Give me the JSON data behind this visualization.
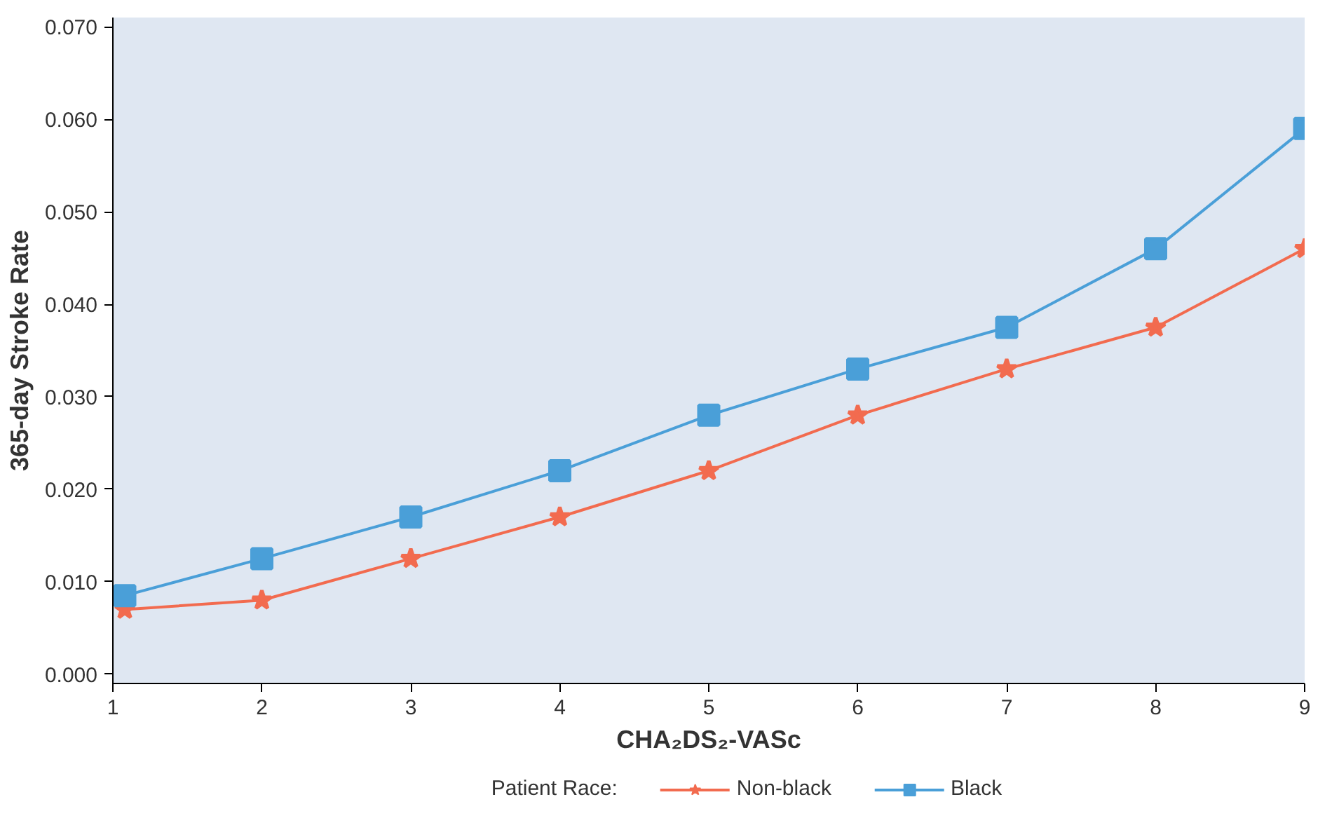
{
  "chart_data": {
    "type": "line",
    "xlabel": "CHA₂DS₂-VASc",
    "ylabel": "365-day Stroke Rate",
    "legend_title": "Patient Race:",
    "x": [
      1.08,
      2,
      3,
      4,
      5,
      6,
      7,
      8,
      9
    ],
    "series": [
      {
        "name": "Non-black",
        "color": "#f26b4f",
        "marker": "star",
        "values": [
          0.007,
          0.008,
          0.0125,
          0.017,
          0.022,
          0.028,
          0.033,
          0.0375,
          0.046
        ]
      },
      {
        "name": "Black",
        "color": "#4a9fd8",
        "marker": "square",
        "values": [
          0.0085,
          0.0125,
          0.017,
          0.022,
          0.028,
          0.033,
          0.0375,
          0.046,
          0.059
        ]
      }
    ],
    "xlim": [
      1,
      9
    ],
    "ylim": [
      -0.001,
      0.071
    ],
    "xticks": [
      1,
      2,
      3,
      4,
      5,
      6,
      7,
      8,
      9
    ],
    "yticks": [
      {
        "value": 0,
        "label": "0.000"
      },
      {
        "value": 0.01,
        "label": "0.010"
      },
      {
        "value": 0.02,
        "label": "0.020"
      },
      {
        "value": 0.03,
        "label": "0.030"
      },
      {
        "value": 0.04,
        "label": "0.040"
      },
      {
        "value": 0.05,
        "label": "0.050"
      },
      {
        "value": 0.06,
        "label": "0.060"
      },
      {
        "value": 0.07,
        "label": "0.070"
      }
    ],
    "grid": false,
    "legend": "bottom",
    "line_style": "solid"
  }
}
